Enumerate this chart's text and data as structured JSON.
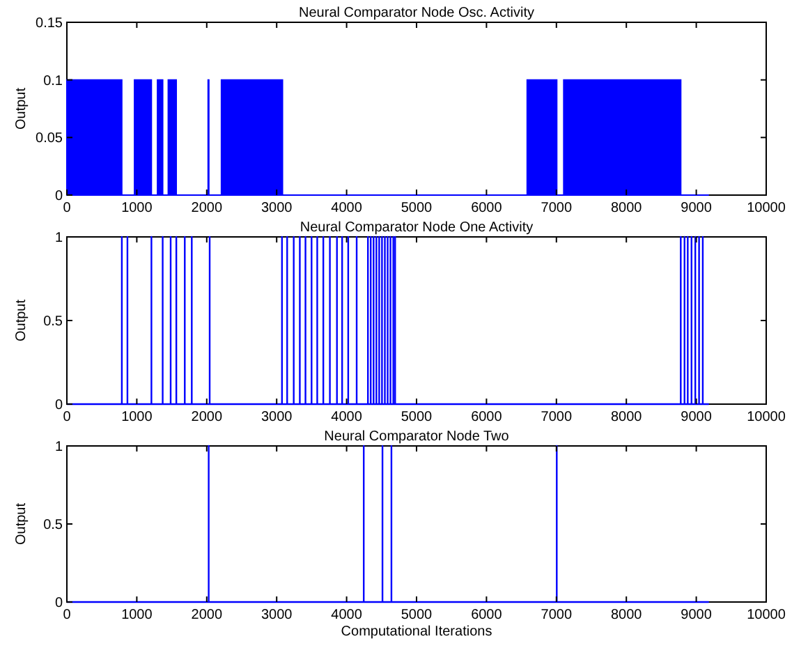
{
  "chart_data": [
    {
      "type": "area",
      "title": "Neural Comparator Node Osc. Activity",
      "ylabel": "Output",
      "xlim": [
        0,
        10000
      ],
      "xticks": [
        0,
        1000,
        2000,
        3000,
        4000,
        5000,
        6000,
        7000,
        8000,
        9000,
        10000
      ],
      "ylim": [
        0,
        0.15
      ],
      "yticks": [
        0,
        0.05,
        0.1,
        0.15
      ],
      "series": [
        {
          "color": "#0000ff",
          "x": [
            0,
            0,
            785,
            785,
            967,
            967,
            1208,
            1208,
            1296,
            1296,
            1370,
            1370,
            1450,
            1450,
            1564,
            1564,
            2020,
            2020,
            2030,
            2030,
            2210,
            2210,
            3083,
            3083,
            6582,
            6582,
            7005,
            7005,
            7105,
            7105,
            8778,
            8778,
            9180
          ],
          "values": [
            0,
            0.1,
            0.1,
            0,
            0,
            0.1,
            0.1,
            0,
            0,
            0.1,
            0.1,
            0,
            0,
            0.1,
            0.1,
            0,
            0,
            0.1,
            0.1,
            0,
            0,
            0.1,
            0.1,
            0,
            0,
            0.1,
            0.1,
            0,
            0,
            0.1,
            0.1,
            0,
            0
          ]
        }
      ]
    },
    {
      "type": "line",
      "title": "Neural Comparator Node One Activity",
      "ylabel": "Output",
      "xlim": [
        0,
        10000
      ],
      "xticks": [
        0,
        1000,
        2000,
        3000,
        4000,
        5000,
        6000,
        7000,
        8000,
        9000,
        10000
      ],
      "ylim": [
        0,
        1
      ],
      "yticks": [
        0,
        0.5,
        1
      ],
      "series": [
        {
          "color": "#0000ff",
          "x": [
            0,
            786,
            786,
            786,
            866,
            866,
            866,
            1209,
            1209,
            1209,
            1370,
            1370,
            1370,
            1484,
            1484,
            1484,
            1565,
            1565,
            1565,
            1686,
            1686,
            1686,
            1786,
            1786,
            1786,
            2042,
            2042,
            2042,
            3076,
            3076,
            3076,
            3150,
            3150,
            3150,
            3244,
            3244,
            3244,
            3331,
            3331,
            3331,
            3412,
            3412,
            3412,
            3499,
            3499,
            3499,
            3580,
            3580,
            3580,
            3667,
            3667,
            3667,
            3761,
            3761,
            3761,
            3862,
            3862,
            3862,
            3936,
            3936,
            3936,
            4023,
            4023,
            4023,
            4144,
            4144,
            4144,
            4305,
            4305,
            4305,
            4345,
            4345,
            4345,
            4386,
            4386,
            4386,
            4426,
            4426,
            4426,
            4466,
            4466,
            4466,
            4506,
            4506,
            4506,
            4547,
            4547,
            4547,
            4587,
            4587,
            4587,
            4627,
            4627,
            4627,
            4668,
            4668,
            4668,
            4694,
            4694,
            4694,
            8778,
            8778,
            8778,
            8832,
            8832,
            8832,
            8878,
            8878,
            8878,
            8932,
            8932,
            8932,
            8986,
            8986,
            8986,
            9040,
            9040,
            9040,
            9093,
            9093,
            9093,
            9180
          ],
          "values": [
            0,
            0,
            1,
            0,
            0,
            1,
            0,
            0,
            1,
            0,
            0,
            1,
            0,
            0,
            1,
            0,
            0,
            1,
            0,
            0,
            1,
            0,
            0,
            1,
            0,
            0,
            1,
            0,
            0,
            1,
            0,
            0,
            1,
            0,
            0,
            1,
            0,
            0,
            1,
            0,
            0,
            1,
            0,
            0,
            1,
            0,
            0,
            1,
            0,
            0,
            1,
            0,
            0,
            1,
            0,
            0,
            1,
            0,
            0,
            1,
            0,
            0,
            1,
            0,
            0,
            1,
            0,
            0,
            1,
            0,
            0,
            1,
            0,
            0,
            1,
            0,
            0,
            1,
            0,
            0,
            1,
            0,
            0,
            1,
            0,
            0,
            1,
            0,
            0,
            1,
            0,
            0,
            1,
            0,
            0,
            1,
            0,
            0,
            1,
            0,
            0,
            1,
            0,
            0,
            1,
            0,
            0,
            1,
            0,
            0,
            1,
            0,
            0,
            1,
            0,
            0,
            1,
            0,
            0,
            1,
            0,
            0
          ]
        }
      ]
    },
    {
      "type": "line",
      "title": "Neural Comparator Node Two",
      "ylabel": "Output",
      "xlabel": "Computational Iterations",
      "xlim": [
        0,
        10000
      ],
      "xticks": [
        0,
        1000,
        2000,
        3000,
        4000,
        5000,
        6000,
        7000,
        8000,
        9000,
        10000
      ],
      "ylim": [
        0,
        1
      ],
      "yticks": [
        0,
        0.5,
        1
      ],
      "series": [
        {
          "color": "#0000ff",
          "x": [
            0,
            2028,
            2028,
            2028,
            4245,
            4245,
            4245,
            4513,
            4513,
            4513,
            4641,
            4641,
            4641,
            7005,
            7005,
            7005,
            9180
          ],
          "values": [
            0,
            0,
            1,
            0,
            0,
            1,
            0,
            0,
            1,
            0,
            0,
            1,
            0,
            0,
            1,
            0,
            0
          ]
        }
      ]
    }
  ]
}
